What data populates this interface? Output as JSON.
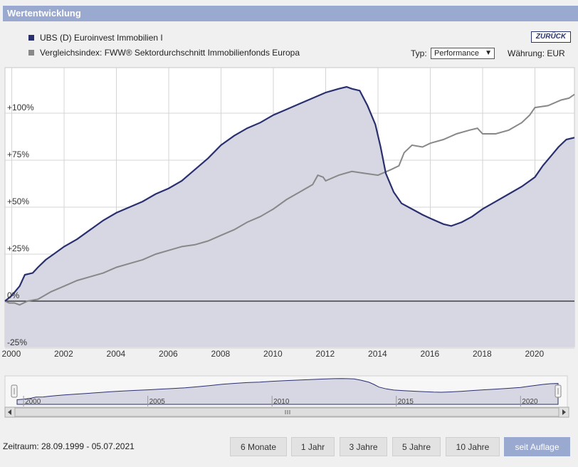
{
  "header": {
    "title": "Wertentwicklung"
  },
  "legend": [
    {
      "label": "UBS (D) Euroinvest Immobilien I",
      "color": "#2a2f6e"
    },
    {
      "label": "Vergleichsindex: FWW® Sektordurchschnitt Immobilienfonds Europa",
      "color": "#888888"
    }
  ],
  "controls": {
    "back_label": "ZURÜCK",
    "type_label": "Typ:",
    "type_value": "Performance",
    "currency_label": "Währung: EUR"
  },
  "navigator": {
    "labels": [
      "2000",
      "2005",
      "2010",
      "2015",
      "2020"
    ]
  },
  "footer": {
    "period": "Zeitraum: 28.09.1999 - 05.07.2021",
    "buttons": [
      "6 Monate",
      "1 Jahr",
      "3 Jahre",
      "5 Jahre",
      "10 Jahre",
      "seit Auflage"
    ],
    "active_index": 5
  },
  "chart_data": {
    "type": "line",
    "xlim": [
      1999.74,
      2021.51
    ],
    "ylim": [
      -25,
      120
    ],
    "x_ticks": [
      2000,
      2002,
      2004,
      2006,
      2008,
      2010,
      2012,
      2014,
      2016,
      2018,
      2020
    ],
    "y_ticks": [
      "-25%",
      "0%",
      "+25%",
      "+50%",
      "+75%",
      "+100%"
    ],
    "y_tick_values": [
      -25,
      0,
      25,
      50,
      75,
      100
    ],
    "grid": true,
    "series": [
      {
        "name": "UBS (D) Euroinvest Immobilien I",
        "color": "#2a2f6e",
        "fill": "#d6d7e2",
        "points": [
          [
            1999.74,
            0
          ],
          [
            2000.0,
            3
          ],
          [
            2000.3,
            8
          ],
          [
            2000.5,
            14
          ],
          [
            2000.8,
            15
          ],
          [
            2001.0,
            18
          ],
          [
            2001.3,
            22
          ],
          [
            2001.6,
            25
          ],
          [
            2002.0,
            29
          ],
          [
            2002.5,
            33
          ],
          [
            2003.0,
            38
          ],
          [
            2003.5,
            43
          ],
          [
            2004.0,
            47
          ],
          [
            2004.5,
            50
          ],
          [
            2005.0,
            53
          ],
          [
            2005.5,
            57
          ],
          [
            2006.0,
            60
          ],
          [
            2006.5,
            64
          ],
          [
            2007.0,
            70
          ],
          [
            2007.5,
            76
          ],
          [
            2008.0,
            83
          ],
          [
            2008.5,
            88
          ],
          [
            2009.0,
            92
          ],
          [
            2009.5,
            95
          ],
          [
            2010.0,
            99
          ],
          [
            2010.5,
            102
          ],
          [
            2011.0,
            105
          ],
          [
            2011.5,
            108
          ],
          [
            2012.0,
            111
          ],
          [
            2012.5,
            113
          ],
          [
            2012.8,
            114
          ],
          [
            2013.0,
            113
          ],
          [
            2013.3,
            112
          ],
          [
            2013.6,
            104
          ],
          [
            2013.9,
            94
          ],
          [
            2014.1,
            82
          ],
          [
            2014.3,
            68
          ],
          [
            2014.6,
            58
          ],
          [
            2014.9,
            52
          ],
          [
            2015.3,
            49
          ],
          [
            2015.7,
            46
          ],
          [
            2016.0,
            44
          ],
          [
            2016.5,
            41
          ],
          [
            2016.8,
            40
          ],
          [
            2017.2,
            42
          ],
          [
            2017.6,
            45
          ],
          [
            2018.0,
            49
          ],
          [
            2018.5,
            53
          ],
          [
            2019.0,
            57
          ],
          [
            2019.5,
            61
          ],
          [
            2020.0,
            66
          ],
          [
            2020.3,
            72
          ],
          [
            2020.6,
            77
          ],
          [
            2020.9,
            82
          ],
          [
            2021.2,
            86
          ],
          [
            2021.51,
            87
          ]
        ]
      },
      {
        "name": "Vergleichsindex: FWW® Sektordurchschnitt Immobilienfonds Europa",
        "color": "#888888",
        "points": [
          [
            1999.74,
            0
          ],
          [
            1999.9,
            -1
          ],
          [
            2000.1,
            -1
          ],
          [
            2000.3,
            -2
          ],
          [
            2000.6,
            0
          ],
          [
            2001.0,
            1
          ],
          [
            2001.5,
            5
          ],
          [
            2002.0,
            8
          ],
          [
            2002.5,
            11
          ],
          [
            2003.0,
            13
          ],
          [
            2003.5,
            15
          ],
          [
            2004.0,
            18
          ],
          [
            2004.5,
            20
          ],
          [
            2005.0,
            22
          ],
          [
            2005.5,
            25
          ],
          [
            2006.0,
            27
          ],
          [
            2006.5,
            29
          ],
          [
            2007.0,
            30
          ],
          [
            2007.5,
            32
          ],
          [
            2008.0,
            35
          ],
          [
            2008.5,
            38
          ],
          [
            2009.0,
            42
          ],
          [
            2009.5,
            45
          ],
          [
            2010.0,
            49
          ],
          [
            2010.5,
            54
          ],
          [
            2011.0,
            58
          ],
          [
            2011.5,
            62
          ],
          [
            2011.7,
            67
          ],
          [
            2011.9,
            66
          ],
          [
            2012.0,
            64
          ],
          [
            2012.5,
            67
          ],
          [
            2013.0,
            69
          ],
          [
            2013.5,
            68
          ],
          [
            2014.0,
            67
          ],
          [
            2014.5,
            70
          ],
          [
            2014.8,
            72
          ],
          [
            2015.0,
            79
          ],
          [
            2015.3,
            83
          ],
          [
            2015.7,
            82
          ],
          [
            2016.0,
            84
          ],
          [
            2016.5,
            86
          ],
          [
            2017.0,
            89
          ],
          [
            2017.5,
            91
          ],
          [
            2017.8,
            92
          ],
          [
            2018.0,
            89
          ],
          [
            2018.5,
            89
          ],
          [
            2019.0,
            91
          ],
          [
            2019.5,
            95
          ],
          [
            2019.8,
            99
          ],
          [
            2020.0,
            103
          ],
          [
            2020.5,
            104
          ],
          [
            2021.0,
            107
          ],
          [
            2021.3,
            108
          ],
          [
            2021.51,
            110
          ]
        ]
      }
    ]
  }
}
